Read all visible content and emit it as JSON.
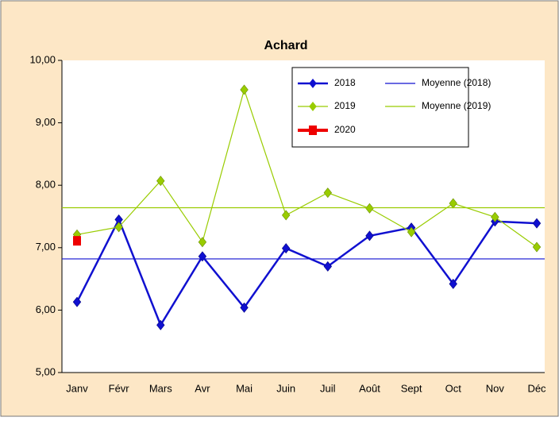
{
  "chart_data": {
    "type": "line",
    "title": "Achard",
    "categories": [
      "Janv",
      "Févr",
      "Mars",
      "Avr",
      "Mai",
      "Juin",
      "Juil",
      "Août",
      "Sept",
      "Oct",
      "Nov",
      "Déc"
    ],
    "ylim": [
      5,
      10
    ],
    "yticks": [
      {
        "value": 5,
        "label": "5,00"
      },
      {
        "value": 6,
        "label": "6,00"
      },
      {
        "value": 7,
        "label": "7,00"
      },
      {
        "value": 8,
        "label": "8,00"
      },
      {
        "value": 9,
        "label": "9,00"
      },
      {
        "value": 10,
        "label": "10,00"
      }
    ],
    "grid": false,
    "legend": "top-right",
    "series": [
      {
        "name": "2018",
        "color": "#1010d0",
        "values": [
          6.13,
          7.45,
          5.76,
          6.86,
          6.04,
          6.99,
          6.7,
          7.19,
          7.32,
          6.42,
          7.42,
          7.39
        ]
      },
      {
        "name": "2019",
        "color": "#99cc00",
        "values": [
          7.21,
          7.33,
          8.07,
          7.09,
          9.53,
          7.52,
          7.88,
          7.63,
          7.25,
          7.71,
          7.49,
          7.01
        ]
      },
      {
        "name": "2020",
        "color": "#ee0000",
        "values": [
          7.11,
          null,
          null,
          null,
          null,
          null,
          null,
          null,
          null,
          null,
          null,
          null
        ]
      },
      {
        "name": "Moyenne (2018)",
        "color": "#1010d0",
        "kind": "mean",
        "value": 6.82
      },
      {
        "name": "Moyenne (2019)",
        "color": "#99cc00",
        "kind": "mean",
        "value": 7.64
      }
    ]
  }
}
